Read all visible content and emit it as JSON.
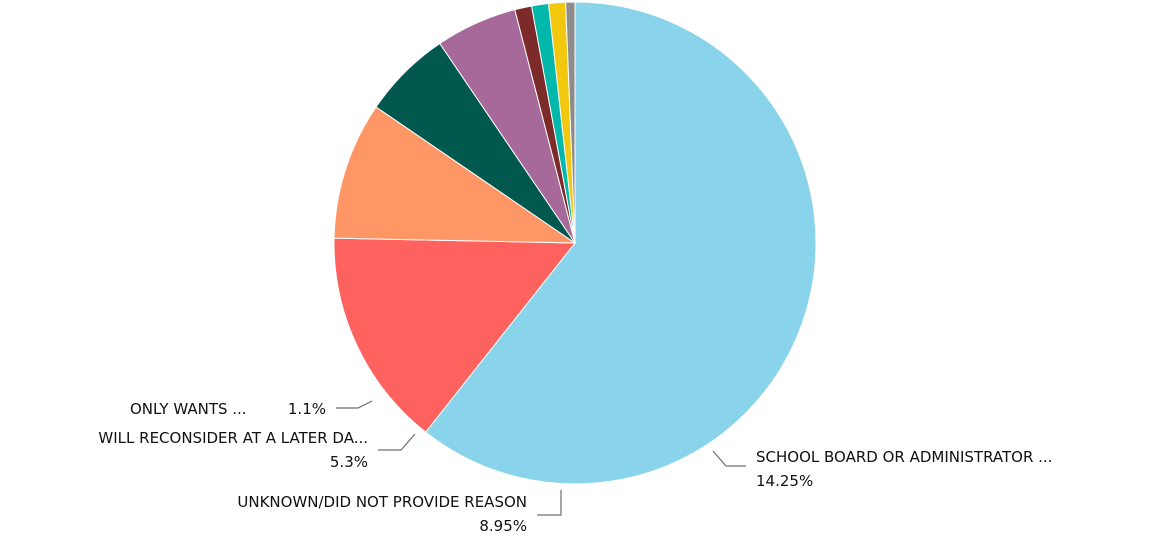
{
  "chart_data": {
    "type": "pie",
    "slices": [
      {
        "label": "",
        "value": 58.85,
        "color": "#8ad4eb"
      },
      {
        "label": "SCHOOL BOARD OR ADMINISTRATOR ...",
        "value": 14.25,
        "color": "#fd625e",
        "value_label": "14.25%"
      },
      {
        "label": "UNKNOWN/DID NOT PROVIDE REASON",
        "value": 8.95,
        "color": "#fe9666",
        "value_label": "8.95%"
      },
      {
        "label": "",
        "value": 5.8,
        "color": "#01584f",
        "value_label": ""
      },
      {
        "label": "WILL RECONSIDER AT A LATER DA...",
        "value": 5.3,
        "color": "#a66999",
        "value_label": "5.3%"
      },
      {
        "label": "",
        "value": 1.1,
        "color": "#7d2a2a",
        "value_label": ""
      },
      {
        "label": "",
        "value": 1.1,
        "color": "#01b8aa",
        "value_label": ""
      },
      {
        "label": "ONLY WANTS ...",
        "value": 1.1,
        "color": "#f2c80f",
        "value_label": "1.1%"
      },
      {
        "label": "",
        "value": 0.6,
        "color": "#8c8c8c",
        "value_label": ""
      }
    ],
    "start_angle_deg": 90,
    "direction": "clockwise",
    "legend": "none"
  }
}
